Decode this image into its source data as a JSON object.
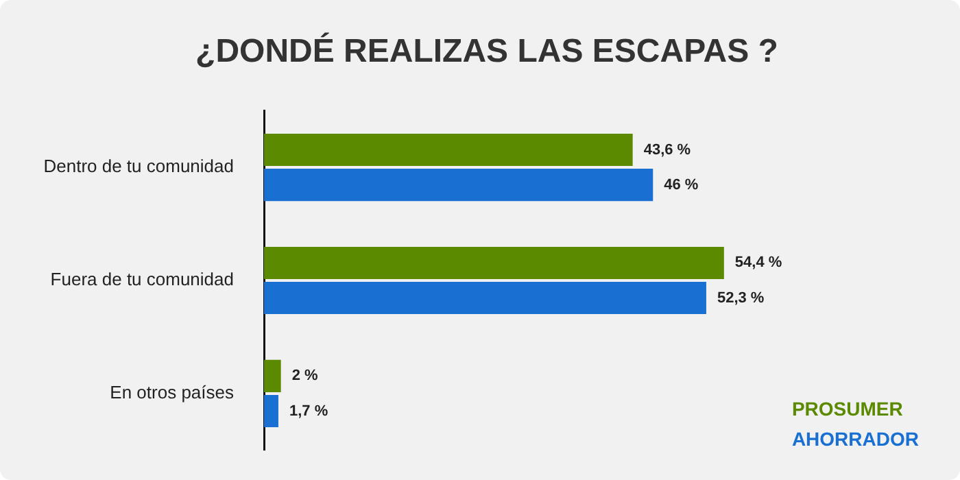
{
  "chart_data": {
    "type": "bar",
    "orientation": "horizontal",
    "title": "¿DONDÉ REALIZAS LAS ESCAPAS ?",
    "categories": [
      "Dentro de tu comunidad",
      "Fuera de tu comunidad",
      "En otros países"
    ],
    "series": [
      {
        "name": "PROSUMER",
        "color": "#5b8a00",
        "values": [
          43.6,
          54.4,
          2
        ],
        "value_labels": [
          "43,6 %",
          "54,4 %",
          "2 %"
        ]
      },
      {
        "name": "AHORRADOR",
        "color": "#1a6fd3",
        "values": [
          46,
          52.3,
          1.7
        ],
        "value_labels": [
          "46 %",
          "52,3 %",
          "1,7 %"
        ]
      }
    ],
    "legend": "bottom right"
  }
}
